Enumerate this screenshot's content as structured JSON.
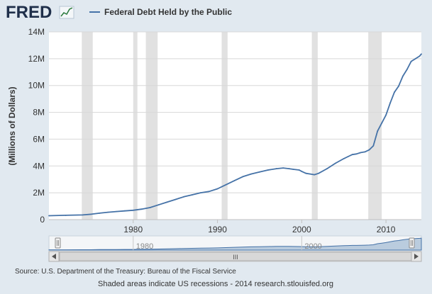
{
  "header": {
    "logo_text": "FRED",
    "legend_label": "Federal Debt Held by the Public"
  },
  "colors": {
    "page_background": "#e1e9f0",
    "plot_background": "#ffffff",
    "series_line": "#4572a7",
    "recession_band": "#e1e1e1",
    "navigator_fill": "#a7bdd6",
    "logo_text": "#1f2f4a"
  },
  "chart_data": {
    "type": "line",
    "title": "",
    "xlabel": "",
    "ylabel": "(Millions of Dollars)",
    "xlim": [
      1970,
      2014.2
    ],
    "ylim": [
      0,
      14000000
    ],
    "grid": "horizontal",
    "legend_position": "top",
    "x_ticks": [
      1980,
      1990,
      2000,
      2010
    ],
    "y_ticks": [
      {
        "value": 0,
        "label": "0"
      },
      {
        "value": 2000000,
        "label": "2M"
      },
      {
        "value": 4000000,
        "label": "4M"
      },
      {
        "value": 6000000,
        "label": "6M"
      },
      {
        "value": 8000000,
        "label": "8M"
      },
      {
        "value": 10000000,
        "label": "10M"
      },
      {
        "value": 12000000,
        "label": "12M"
      },
      {
        "value": 14000000,
        "label": "14M"
      }
    ],
    "recessions": [
      [
        1973.9,
        1975.2
      ],
      [
        1980.0,
        1980.5
      ],
      [
        1981.5,
        1982.9
      ],
      [
        1990.5,
        1991.2
      ],
      [
        2001.2,
        2001.9
      ],
      [
        2007.9,
        2009.5
      ]
    ],
    "series": [
      {
        "name": "Federal Debt Held by the Public",
        "x": [
          1970,
          1972,
          1974,
          1975,
          1976,
          1977,
          1978,
          1979,
          1980,
          1981,
          1982,
          1983,
          1984,
          1985,
          1986,
          1987,
          1988,
          1989,
          1990,
          1991,
          1992,
          1993,
          1994,
          1995,
          1996,
          1997,
          1997.8,
          1998.5,
          1999,
          1999.7,
          2000,
          2000.5,
          2001,
          2001.5,
          2002,
          2003,
          2004,
          2005,
          2005.5,
          2006,
          2006.5,
          2007,
          2007.5,
          2008,
          2008.5,
          2009,
          2009.5,
          2010,
          2010.5,
          2011,
          2011.5,
          2012,
          2012.5,
          2013,
          2013.5,
          2014,
          2014.2
        ],
        "y": [
          290000,
          320000,
          350000,
          400000,
          480000,
          550000,
          600000,
          650000,
          700000,
          780000,
          900000,
          1100000,
          1300000,
          1500000,
          1700000,
          1850000,
          2000000,
          2100000,
          2300000,
          2600000,
          2900000,
          3200000,
          3400000,
          3550000,
          3700000,
          3800000,
          3850000,
          3800000,
          3750000,
          3700000,
          3600000,
          3450000,
          3400000,
          3350000,
          3450000,
          3800000,
          4200000,
          4550000,
          4700000,
          4850000,
          4900000,
          5000000,
          5050000,
          5200000,
          5500000,
          6600000,
          7200000,
          7800000,
          8700000,
          9500000,
          9950000,
          10700000,
          11200000,
          11800000,
          12000000,
          12200000,
          12350000
        ]
      }
    ],
    "navigator": {
      "x_ticks": [
        1980,
        2000
      ],
      "scrollbar_grip": "III"
    }
  },
  "footer": {
    "source_text": "Source: U.S. Department of the Treasury: Bureau of the Fiscal Service",
    "note_text": "Shaded areas indicate US recessions - 2014 research.stlouisfed.org"
  }
}
